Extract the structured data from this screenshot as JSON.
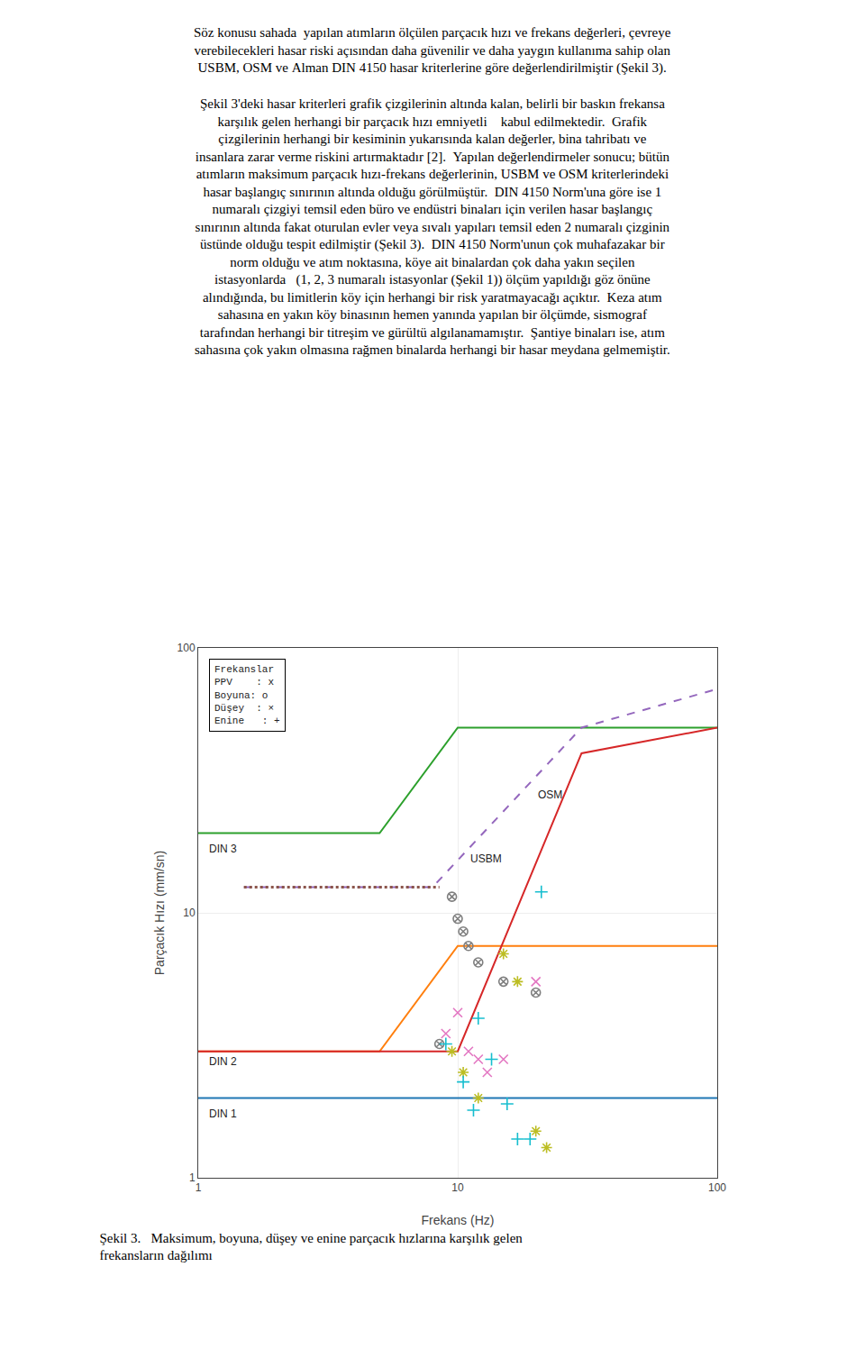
{
  "chart_data": {
    "type": "line",
    "title": "Şekil 3.   Maksimum, boyuna, düşey ve enine parçacık hızlarına karşılık gelen\nfrekansların dağılımı",
    "subtitle": [
      [
        "Söz konusu sahada  yapılan atımların ölçülen parçacık hızı ve frekans değerleri, çevreye",
        "verebilecekleri hasar riski açısından daha güvenilir ve daha yaygın kullanıma sahip olan",
        "USBM, OSM ve Alman DIN 4150 hasar kriterlerine göre değerlendirilmiştir (Şekil 3)."
      ],
      [
        "Şekil 3'deki hasar kriterleri grafik çizgilerinin altında kalan, belirli bir baskın frekansa",
        "karşılık gelen herhangi bir parçacık hızı emniyetli    kabul edilmektedir.  Grafik",
        "çizgilerinin herhangi bir kesiminin yukarısında kalan değerler, bina tahribatı ve",
        "insanlara zarar verme riskini artırmaktadır [2].  Yapılan değerlendirmeler sonucu; bütün",
        "atımların maksimum parçacık hızı-frekans değerlerinin, USBM ve OSM kriterlerindeki",
        "hasar başlangıç sınırının altında olduğu görülmüştür.  DIN 4150 Norm'una göre ise 1",
        "numaralı çizgiyi temsil eden büro ve endüstri binaları için verilen hasar başlangıç",
        "sınırının altında fakat oturulan evler veya sıvalı yapıları temsil eden 2 numaralı çizginin",
        "üstünde olduğu tespit edilmiştir (Şekil 3).  DIN 4150 Norm'unun çok muhafazakar bir",
        "norm olduğu ve atım noktasına, köye ait binalardan çok daha yakın seçilen",
        "istasyonlarda   (1, 2, 3 numaralı istasyonlar (Şekil 1)) ölçüm yapıldığı göz önüne",
        "alındığında, bu limitlerin köy için herhangi bir risk yaratmayacağı açıktır.  Keza atım",
        "sahasına en yakın köy binasının hemen yanında yapılan bir ölçümde, sismograf",
        "tarafından herhangi bir titreşim ve gürültü algılanamamıştır.  Şantiye binaları ise, atım",
        "sahasına çok yakın olmasına rağmen binalarda herhangi bir hasar meydana gelmemiştir."
      ]
    ],
    "x_label": "Frekans (Hz)",
    "y_label": "Parçacık Hızı (mm/sn)",
    "log": true,
    "grid": true,
    "xlim": [
      1,
      100
    ],
    "ylim": [
      1,
      100
    ],
    "xticks": [
      1,
      10,
      100
    ],
    "yticks": [
      1,
      10,
      100
    ],
    "series": [
      {
        "type": "line",
        "line_style": "solid",
        "x": [
          1,
          100
        ],
        "values": [
          2.0,
          2.0
        ]
      },
      {
        "type": "line",
        "line_style": "solid",
        "x": [
          1,
          5,
          10,
          100
        ],
        "values": [
          3.0,
          3.0,
          7.5,
          7.5
        ]
      },
      {
        "type": "line",
        "line_style": "solid",
        "x": [
          1,
          5,
          10,
          100
        ],
        "values": [
          20.0,
          20.0,
          50.0,
          50.0
        ]
      },
      {
        "type": "line",
        "line_style": "solid",
        "x": [
          1,
          10,
          30,
          100
        ],
        "values": [
          3.0,
          3.0,
          40.0,
          50.0
        ]
      },
      {
        "type": "line",
        "line_style": "dashed",
        "x": [
          1.5,
          8.0,
          30.0,
          100
        ],
        "values": [
          12.5,
          12.5,
          50.0,
          70.0
        ]
      },
      {
        "type": "line",
        "line_style": "dotted",
        "x": [
          1.5,
          8.5
        ],
        "values": [
          12.5,
          12.5
        ]
      },
      {
        "type": "scatter",
        "marker": "x",
        "x": [
          9.0,
          10.0,
          11.0,
          12.0,
          13.0,
          15.0,
          20.0
        ],
        "values": [
          3.5,
          4.2,
          3.0,
          2.8,
          2.5,
          2.8,
          5.5
        ]
      },
      {
        "type": "scatter",
        "marker": "circle-x",
        "x": [
          8.5,
          9.5,
          10.0,
          10.5,
          11.0,
          12.0,
          15.0,
          20.0
        ],
        "values": [
          3.2,
          11.5,
          9.5,
          8.5,
          7.5,
          6.5,
          5.5,
          5.0
        ]
      },
      {
        "type": "scatter",
        "marker": "asterisk",
        "x": [
          9.5,
          10.5,
          12.0,
          15.0,
          17.0,
          20.0,
          22.0
        ],
        "values": [
          3.0,
          2.5,
          2.0,
          7.0,
          5.5,
          1.5,
          1.3
        ]
      },
      {
        "type": "scatter",
        "marker": "cross",
        "x": [
          9.0,
          10.5,
          12.0,
          13.5,
          15.5,
          17.0,
          19.0,
          21.0,
          11.5
        ],
        "values": [
          3.2,
          2.3,
          4.0,
          2.8,
          1.9,
          1.4,
          1.4,
          12.0,
          1.8
        ]
      }
    ],
    "annotations": [
      {
        "text": "DIN 1",
        "x": 1.08,
        "y": 1.75
      },
      {
        "text": "DIN 2",
        "x": 1.08,
        "y": 2.75
      },
      {
        "text": "DIN 3",
        "x": 1.08,
        "y": 17.5
      },
      {
        "text": "OSM",
        "x": 20,
        "y": 28
      },
      {
        "text": "USBM",
        "x": 11,
        "y": 16
      },
      {
        "text": "Frekanslar\nPPV    : x\nBoyuna: o\nDüşey  : ×\nEnine   : +"
      }
    ]
  }
}
